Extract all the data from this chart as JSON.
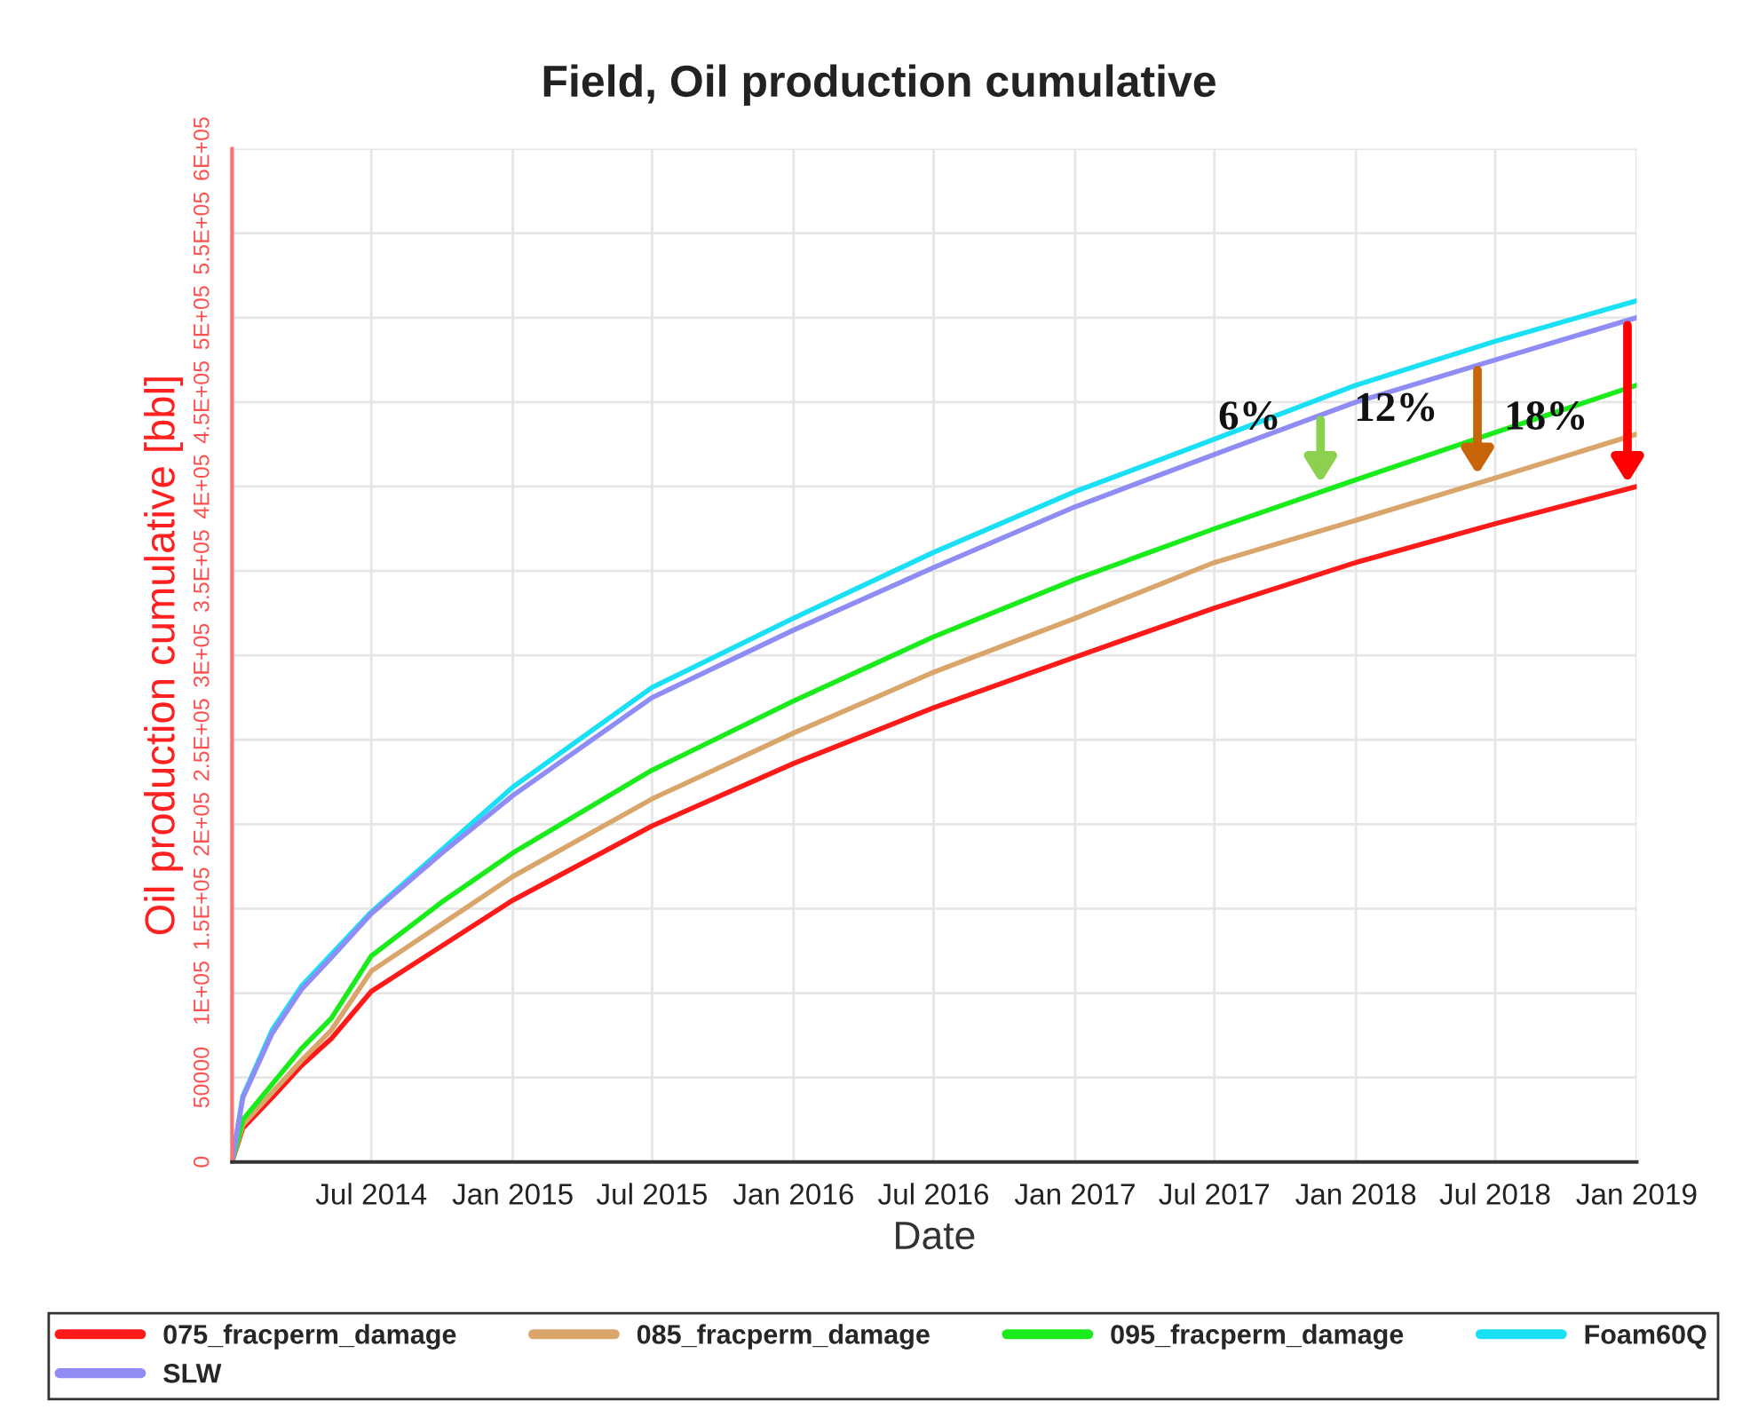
{
  "chart_data": {
    "type": "line",
    "title": "Field, Oil production cumulative",
    "xlabel": "Date",
    "ylabel": "Oil production cumulative [bbl]",
    "x": [
      "2014-01-01",
      "2014-01-15",
      "2014-02-22",
      "2014-04-01",
      "2014-05-10",
      "2014-07-01",
      "2014-10-01",
      "2015-01-01",
      "2015-07-01",
      "2016-01-01",
      "2016-07-01",
      "2017-01-01",
      "2017-07-01",
      "2018-01-01",
      "2018-07-01",
      "2019-01-01"
    ],
    "series": [
      {
        "name": "075_fracperm_damage",
        "color": "#ff1a1a",
        "values": [
          0,
          20000,
          38000,
          57000,
          73000,
          101000,
          128000,
          155000,
          199000,
          236000,
          269000,
          299000,
          328000,
          355000,
          378000,
          400000
        ]
      },
      {
        "name": "085_fracperm_damage",
        "color": "#d9a56a",
        "values": [
          0,
          22000,
          41000,
          60000,
          78000,
          113000,
          141000,
          169000,
          215000,
          254000,
          290000,
          322000,
          355000,
          380000,
          405000,
          431000
        ]
      },
      {
        "name": "095_fracperm_damage",
        "color": "#1aeb1a",
        "values": [
          0,
          25000,
          46000,
          67000,
          85000,
          122000,
          154000,
          183000,
          232000,
          273000,
          311000,
          345000,
          375000,
          404000,
          432000,
          460000
        ]
      },
      {
        "name": "Foam60Q",
        "color": "#1ae0f5",
        "values": [
          0,
          39000,
          78000,
          104000,
          123000,
          148000,
          185000,
          222000,
          281000,
          322000,
          361000,
          397000,
          428000,
          460000,
          486000,
          510000
        ]
      },
      {
        "name": "SLW",
        "color": "#8f8cf5",
        "values": [
          0,
          38000,
          76000,
          102000,
          121000,
          147000,
          183000,
          217000,
          275000,
          315000,
          352000,
          388000,
          419000,
          450000,
          475000,
          500000
        ]
      }
    ],
    "xlim": [
      "2014-01-01",
      "2019-01-01"
    ],
    "xticks": [
      {
        "value": "2014-07-01",
        "label": "Jul 2014"
      },
      {
        "value": "2015-01-01",
        "label": "Jan 2015"
      },
      {
        "value": "2015-07-01",
        "label": "Jul 2015"
      },
      {
        "value": "2016-01-01",
        "label": "Jan 2016"
      },
      {
        "value": "2016-07-01",
        "label": "Jul 2016"
      },
      {
        "value": "2017-01-01",
        "label": "Jan 2017"
      },
      {
        "value": "2017-07-01",
        "label": "Jul 2017"
      },
      {
        "value": "2018-01-01",
        "label": "Jan 2018"
      },
      {
        "value": "2018-07-01",
        "label": "Jul 2018"
      },
      {
        "value": "2019-01-01",
        "label": "Jan 2019"
      }
    ],
    "ylim": [
      0,
      600000
    ],
    "yticks": [
      0,
      50000,
      {
        "value": 100000,
        "label": "1E+05"
      },
      {
        "value": 150000,
        "label": "1.5E+05"
      },
      {
        "value": 200000,
        "label": "2E+05"
      },
      {
        "value": 250000,
        "label": "2.5E+05"
      },
      {
        "value": 300000,
        "label": "3E+05"
      },
      {
        "value": 350000,
        "label": "3.5E+05"
      },
      {
        "value": 400000,
        "label": "4E+05"
      },
      {
        "value": 450000,
        "label": "4.5E+05"
      },
      {
        "value": 500000,
        "label": "5E+05"
      },
      {
        "value": 550000,
        "label": "5.5E+05"
      },
      {
        "value": 600000,
        "label": "6E+05"
      }
    ],
    "annotations": [
      {
        "text": "6%",
        "x": "2017-11-16",
        "y": 399000
      },
      {
        "text": "12%",
        "x": "2018-06-08",
        "y": 404000
      },
      {
        "text": "18%",
        "x": "2018-12-20",
        "y": 399000
      }
    ],
    "grid": true,
    "legend": "bottom",
    "marker": "none",
    "line_style": "solid"
  }
}
